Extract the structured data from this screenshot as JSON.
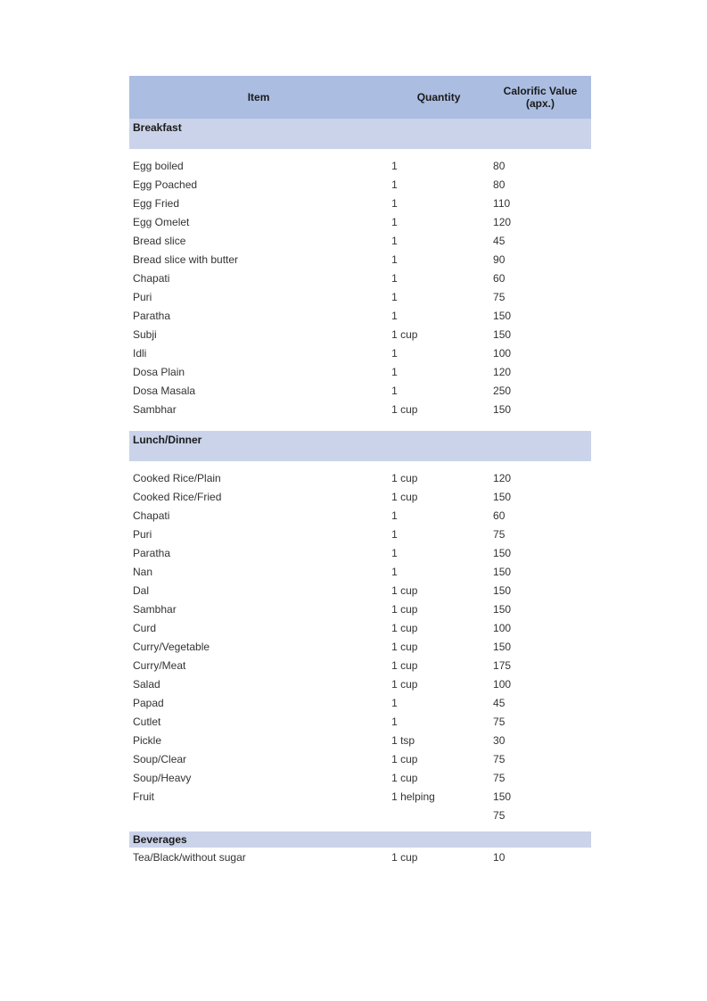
{
  "table": {
    "header_bg": "#abbde1",
    "section_bg": "#cad3ea",
    "text_color": "#333333",
    "header_text_color": "#1a1a1a",
    "columns": [
      "Item",
      "Quantity",
      "Calorific Value (apx.)"
    ],
    "sections": [
      {
        "title": "Breakfast",
        "style": "tall",
        "rows": [
          {
            "item": "Egg boiled",
            "quantity": "1",
            "value": "80"
          },
          {
            "item": "Egg Poached",
            "quantity": "1",
            "value": "80"
          },
          {
            "item": "Egg Fried",
            "quantity": "1",
            "value": "110"
          },
          {
            "item": "Egg Omelet",
            "quantity": "1",
            "value": "120"
          },
          {
            "item": "Bread slice",
            "quantity": "1",
            "value": "45"
          },
          {
            "item": "Bread slice with butter",
            "quantity": "1",
            "value": "90"
          },
          {
            "item": "Chapati",
            "quantity": "1",
            "value": "60"
          },
          {
            "item": "Puri",
            "quantity": "1",
            "value": "75"
          },
          {
            "item": "Paratha",
            "quantity": "1",
            "value": "150"
          },
          {
            "item": "Subji",
            "quantity": "1 cup",
            "value": "150"
          },
          {
            "item": "Idli",
            "quantity": "1",
            "value": "100"
          },
          {
            "item": "Dosa Plain",
            "quantity": "1",
            "value": "120"
          },
          {
            "item": "Dosa Masala",
            "quantity": "1",
            "value": "250"
          },
          {
            "item": "Sambhar",
            "quantity": "1 cup",
            "value": "150"
          }
        ]
      },
      {
        "title": "Lunch/Dinner",
        "style": "tall",
        "rows": [
          {
            "item": "Cooked Rice/Plain",
            "quantity": "1 cup",
            "value": "120"
          },
          {
            "item": "Cooked Rice/Fried",
            "quantity": "1 cup",
            "value": "150"
          },
          {
            "item": "Chapati",
            "quantity": "1",
            "value": "60"
          },
          {
            "item": "Puri",
            "quantity": "1",
            "value": "75"
          },
          {
            "item": "Paratha",
            "quantity": "1",
            "value": "150"
          },
          {
            "item": "Nan",
            "quantity": "1",
            "value": "150"
          },
          {
            "item": "Dal",
            "quantity": "1 cup",
            "value": "150"
          },
          {
            "item": "Sambhar",
            "quantity": "1 cup",
            "value": "150"
          },
          {
            "item": "Curd",
            "quantity": "1 cup",
            "value": "100"
          },
          {
            "item": "Curry/Vegetable",
            "quantity": "1 cup",
            "value": "150"
          },
          {
            "item": "Curry/Meat",
            "quantity": "1 cup",
            "value": "175"
          },
          {
            "item": "Salad",
            "quantity": "1 cup",
            "value": "100"
          },
          {
            "item": "Papad",
            "quantity": "1",
            "value": "45"
          },
          {
            "item": "Cutlet",
            "quantity": "1",
            "value": "75"
          },
          {
            "item": "Pickle",
            "quantity": "1 tsp",
            "value": "30"
          },
          {
            "item": "Soup/Clear",
            "quantity": "1 cup",
            "value": "75"
          },
          {
            "item": "Soup/Heavy",
            "quantity": "1 cup",
            "value": "75"
          },
          {
            "item": "Fruit",
            "quantity": "1 helping",
            "value": "150"
          },
          {
            "item": "",
            "quantity": "",
            "value": "75"
          }
        ]
      },
      {
        "title": "Beverages",
        "style": "short",
        "rows": [
          {
            "item": "Tea/Black/without sugar",
            "quantity": "1 cup",
            "value": "10"
          }
        ]
      }
    ]
  }
}
